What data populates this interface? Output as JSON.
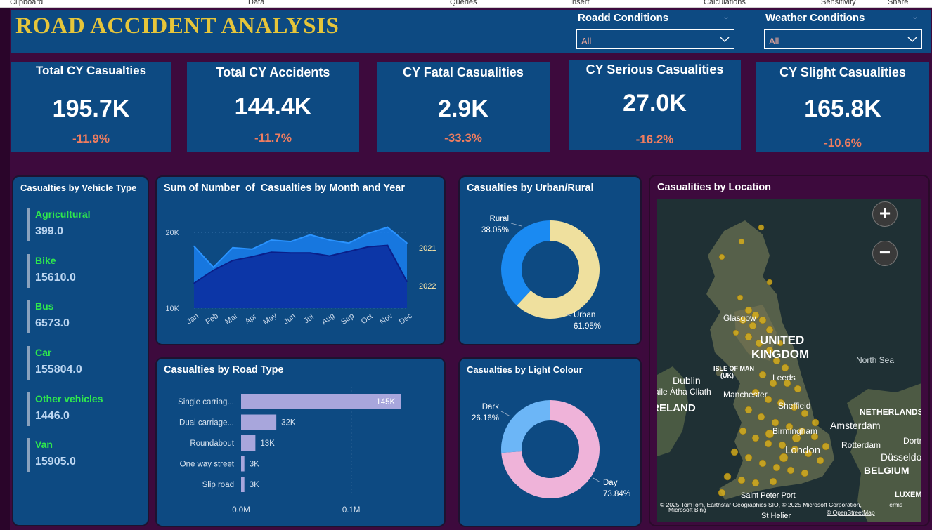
{
  "ribbon": {
    "items": [
      "Clipboard",
      "Data",
      "Queries",
      "Insert",
      "Calculations",
      "Sensitivity",
      "Share"
    ]
  },
  "header": {
    "title": "ROAD ACCIDENT ANALYSIS",
    "road_slicer": {
      "label": "Roadd Conditions",
      "value": "All"
    },
    "weather_slicer": {
      "label": "Weather Conditions",
      "value": "All"
    }
  },
  "kpis": [
    {
      "title": "Total CY Casualties",
      "value": "195.7K",
      "delta": "-11.9%"
    },
    {
      "title": "Total CY Accidents",
      "value": "144.4K",
      "delta": "-11.7%"
    },
    {
      "title": "CY Fatal Casualities",
      "value": "2.9K",
      "delta": "-33.3%"
    },
    {
      "title": "CY Serious Casualities",
      "value": "27.0K",
      "delta": "-16.2%"
    },
    {
      "title": "CY Slight Casualities",
      "value": "165.8K",
      "delta": "-10.6%"
    }
  ],
  "vehicle_panel": {
    "title": "Casualties by Vehicle Type",
    "items": [
      {
        "name": "Agricultural",
        "value": "399.0"
      },
      {
        "name": "Bike",
        "value": "15610.0"
      },
      {
        "name": "Bus",
        "value": "6573.0"
      },
      {
        "name": "Car",
        "value": "155804.0"
      },
      {
        "name": "Other vehicles",
        "value": "1446.0"
      },
      {
        "name": "Van",
        "value": "15905.0"
      }
    ]
  },
  "panels": {
    "monthly": "Sum of Number_of_Casualties by Month and Year",
    "urban": "Casualties by Urban/Rural",
    "road": "Casualties by Road Type",
    "light": "Casualties by Light Colour",
    "location": "Casualities by Location"
  },
  "map": {
    "labels": [
      {
        "text": "Glasgow"
      },
      {
        "text": "UNITED"
      },
      {
        "text": "KINGDOM"
      },
      {
        "text": "North Sea"
      },
      {
        "text": "ISLE OF MAN"
      },
      {
        "text": "(UK)"
      },
      {
        "text": "Dublin"
      },
      {
        "text": "Baile Átha Cliath"
      },
      {
        "text": "IRELAND"
      },
      {
        "text": "Manchester"
      },
      {
        "text": "Leeds"
      },
      {
        "text": "Sheffield"
      },
      {
        "text": "NETHERLANDS"
      },
      {
        "text": "Birmingham"
      },
      {
        "text": "Amsterdam"
      },
      {
        "text": "London"
      },
      {
        "text": "Rotterdam"
      },
      {
        "text": "Dortmund"
      },
      {
        "text": "Düsseldorf"
      },
      {
        "text": "BELGIUM"
      },
      {
        "text": "LUXEMBOURG"
      },
      {
        "text": "Saint Peter Port"
      },
      {
        "text": "St Helier"
      }
    ],
    "attribution": "© 2025 TomTom, Earthstar Geographics SIO, © 2025 Microsoft Corporation,",
    "terms": "Terms",
    "osm": "© OpenStreetMap",
    "bing": "Microsoft Bing",
    "zoom_in": "+",
    "zoom_out": "−"
  },
  "chart_data": [
    {
      "type": "area",
      "title": "Sum of Number_of_Casualties by Month and Year",
      "categories": [
        "Jan",
        "Feb",
        "Mar",
        "Apr",
        "May",
        "Jun",
        "Jul",
        "Aug",
        "Sep",
        "Oct",
        "Nov",
        "Dec"
      ],
      "y_ticks": [
        "10K",
        "20K"
      ],
      "ylim": [
        10000,
        21500
      ],
      "series": [
        {
          "name": "2021",
          "values": [
            18200,
            15400,
            18000,
            17800,
            19000,
            18800,
            19700,
            19000,
            18600,
            19900,
            20700,
            18600
          ]
        },
        {
          "name": "2022",
          "values": [
            13300,
            15000,
            16300,
            16800,
            17400,
            17300,
            17300,
            16900,
            17500,
            18100,
            18300,
            13500
          ]
        }
      ],
      "colors": [
        "#1a7ff0",
        "#0b2a9e"
      ]
    },
    {
      "type": "pie",
      "title": "Casualties by Urban/Rural",
      "slices": [
        {
          "name": "Rural",
          "value": 38.05,
          "label": "38.05%",
          "color": "#1a8af2"
        },
        {
          "name": "Urban",
          "value": 61.95,
          "label": "61.95%",
          "color": "#efe09e"
        }
      ]
    },
    {
      "type": "bar",
      "title": "Casualties by Road Type",
      "categories": [
        "Single carriag...",
        "Dual carriage...",
        "Roundabout",
        "One way street",
        "Slip road"
      ],
      "values": [
        145000,
        32000,
        13000,
        3000,
        3000
      ],
      "labels": [
        "145K",
        "32K",
        "13K",
        "3K",
        "3K"
      ],
      "x_ticks": [
        "0.0M",
        "0.1M"
      ],
      "xlim": [
        0,
        150000
      ],
      "color": "#a8a6dc"
    },
    {
      "type": "pie",
      "title": "Casualties by Light Colour",
      "slices": [
        {
          "name": "Dark",
          "value": 26.16,
          "label": "26.16%",
          "color": "#6cb6f7"
        },
        {
          "name": "Day",
          "value": 73.84,
          "label": "73.84%",
          "color": "#efb3d9"
        }
      ]
    }
  ]
}
